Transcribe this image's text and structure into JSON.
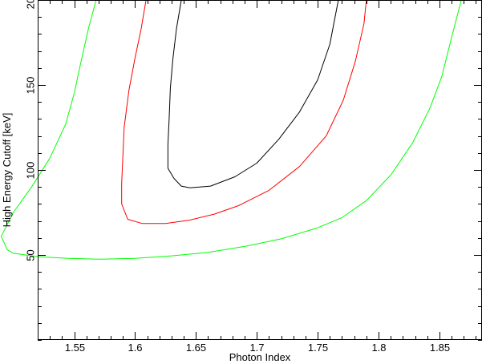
{
  "chart_data": {
    "type": "line",
    "xlabel": "Photon Index",
    "ylabel": "High Energy Cutoff [keV]",
    "xlim": [
      1.52,
      1.885
    ],
    "ylim": [
      0,
      200
    ],
    "x_ticks": [
      1.55,
      1.6,
      1.65,
      1.7,
      1.75,
      1.8,
      1.85
    ],
    "x_tick_labels": [
      "1.55",
      "1.6",
      "1.65",
      "1.7",
      "1.75",
      "1.8",
      "1.85"
    ],
    "y_ticks": [
      50,
      100,
      150,
      200
    ],
    "y_tick_labels": [
      "50",
      "100",
      "150",
      "200"
    ],
    "x_minor_step": 0.01,
    "y_minor_step": 10,
    "grid": false,
    "legend": "none",
    "series": [
      {
        "color": "#000000",
        "points": [
          [
            1.638,
            200
          ],
          [
            1.634,
            183
          ],
          [
            1.631,
            165
          ],
          [
            1.629,
            148
          ],
          [
            1.628,
            130
          ],
          [
            1.627,
            115
          ],
          [
            1.627,
            101
          ],
          [
            1.632,
            95
          ],
          [
            1.638,
            90.5
          ],
          [
            1.645,
            89.5
          ],
          [
            1.662,
            90.5
          ],
          [
            1.682,
            96
          ],
          [
            1.7,
            104
          ],
          [
            1.718,
            118
          ],
          [
            1.735,
            134
          ],
          [
            1.75,
            153
          ],
          [
            1.76,
            174
          ],
          [
            1.767,
            200
          ]
        ]
      },
      {
        "color": "#ff0000",
        "points": [
          [
            1.609,
            200
          ],
          [
            1.605,
            183
          ],
          [
            1.6,
            166
          ],
          [
            1.595,
            147
          ],
          [
            1.591,
            125
          ],
          [
            1.59,
            108
          ],
          [
            1.589,
            92
          ],
          [
            1.589,
            80
          ],
          [
            1.594,
            71
          ],
          [
            1.606,
            68.5
          ],
          [
            1.625,
            68.5
          ],
          [
            1.645,
            70.5
          ],
          [
            1.665,
            74
          ],
          [
            1.685,
            79
          ],
          [
            1.71,
            88
          ],
          [
            1.735,
            102
          ],
          [
            1.757,
            120
          ],
          [
            1.771,
            141
          ],
          [
            1.781,
            164
          ],
          [
            1.788,
            186
          ],
          [
            1.79,
            200
          ]
        ]
      },
      {
        "color": "#00ff00",
        "points": [
          [
            1.568,
            200
          ],
          [
            1.562,
            184
          ],
          [
            1.556,
            165
          ],
          [
            1.55,
            145
          ],
          [
            1.543,
            127
          ],
          [
            1.53,
            107
          ],
          [
            1.515,
            90
          ],
          [
            1.5,
            75
          ],
          [
            1.495,
            68
          ],
          [
            1.49,
            61
          ],
          [
            1.495,
            53
          ],
          [
            1.5,
            51
          ],
          [
            1.52,
            49
          ],
          [
            1.545,
            48
          ],
          [
            1.57,
            47.5
          ],
          [
            1.6,
            48
          ],
          [
            1.63,
            49.5
          ],
          [
            1.66,
            51.5
          ],
          [
            1.69,
            55
          ],
          [
            1.72,
            59.5
          ],
          [
            1.75,
            66
          ],
          [
            1.77,
            72
          ],
          [
            1.79,
            82
          ],
          [
            1.81,
            97
          ],
          [
            1.828,
            116
          ],
          [
            1.842,
            136
          ],
          [
            1.852,
            155
          ],
          [
            1.86,
            178
          ],
          [
            1.868,
            200
          ]
        ]
      }
    ]
  }
}
